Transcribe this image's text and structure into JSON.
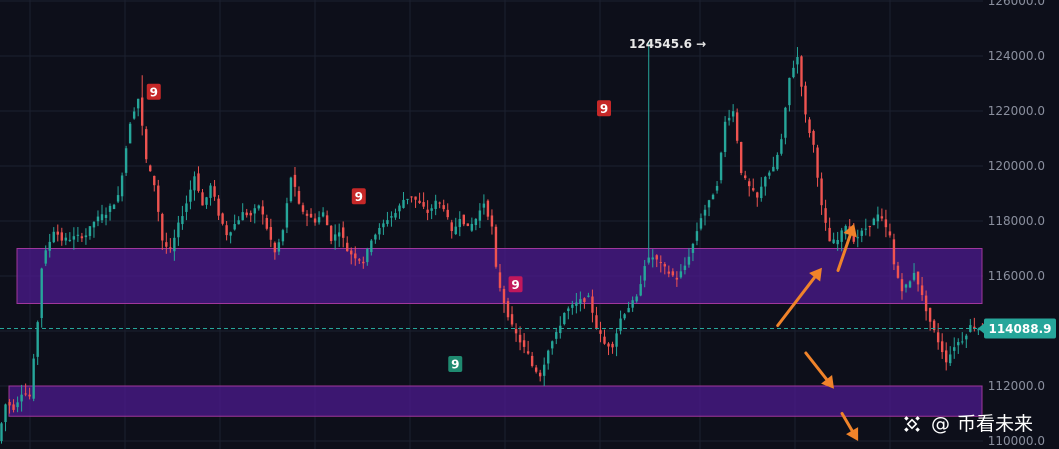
{
  "chart_data": {
    "type": "candlestick",
    "ylim": [
      110000,
      126000
    ],
    "y_ticks": [
      110000,
      112000,
      114000,
      116000,
      118000,
      120000,
      122000,
      124000,
      126000
    ],
    "y_tick_labels": [
      "110000.0",
      "112000.0",
      "114000.0",
      "116000.0",
      "118000.0",
      "120000.0",
      "122000.0",
      "124000.0",
      "126000.0"
    ],
    "grid": true,
    "up_color": "#26a69a",
    "down_color": "#ef5350",
    "price_path": [
      [
        0,
        110000
      ],
      [
        2,
        111400
      ],
      [
        4,
        111200
      ],
      [
        6,
        111800
      ],
      [
        8,
        111600
      ],
      [
        10,
        114500
      ],
      [
        11,
        116500
      ],
      [
        14,
        117700
      ],
      [
        16,
        117300
      ],
      [
        22,
        117500
      ],
      [
        24,
        118000
      ],
      [
        27,
        118300
      ],
      [
        30,
        118900
      ],
      [
        33,
        121700
      ],
      [
        35,
        122500
      ],
      [
        37,
        120100
      ],
      [
        39,
        119300
      ],
      [
        41,
        117200
      ],
      [
        43,
        116900
      ],
      [
        45,
        117900
      ],
      [
        47,
        118700
      ],
      [
        49,
        119700
      ],
      [
        51,
        118500
      ],
      [
        53,
        119300
      ],
      [
        55,
        118200
      ],
      [
        57,
        117500
      ],
      [
        59,
        117900
      ],
      [
        61,
        118300
      ],
      [
        63,
        118200
      ],
      [
        65,
        118600
      ],
      [
        67,
        117700
      ],
      [
        69,
        116800
      ],
      [
        71,
        117700
      ],
      [
        73,
        119700
      ],
      [
        75,
        118500
      ],
      [
        77,
        118200
      ],
      [
        79,
        118000
      ],
      [
        81,
        118300
      ],
      [
        83,
        117300
      ],
      [
        85,
        117700
      ],
      [
        87,
        116900
      ],
      [
        89,
        116700
      ],
      [
        91,
        116500
      ],
      [
        93,
        117400
      ],
      [
        95,
        117700
      ],
      [
        97,
        118100
      ],
      [
        99,
        118300
      ],
      [
        101,
        118800
      ],
      [
        103,
        118900
      ],
      [
        105,
        118600
      ],
      [
        107,
        118300
      ],
      [
        109,
        118700
      ],
      [
        111,
        118500
      ],
      [
        113,
        117500
      ],
      [
        115,
        118200
      ],
      [
        117,
        117700
      ],
      [
        119,
        118100
      ],
      [
        121,
        118700
      ],
      [
        123,
        117700
      ],
      [
        124,
        116100
      ],
      [
        126,
        115000
      ],
      [
        128,
        114100
      ],
      [
        130,
        113600
      ],
      [
        132,
        113100
      ],
      [
        133,
        112700
      ],
      [
        135,
        112400
      ],
      [
        137,
        113400
      ],
      [
        139,
        113900
      ],
      [
        141,
        114700
      ],
      [
        143,
        114900
      ],
      [
        145,
        115100
      ],
      [
        147,
        115200
      ],
      [
        149,
        114100
      ],
      [
        151,
        113500
      ],
      [
        153,
        113500
      ],
      [
        155,
        114500
      ],
      [
        157,
        114900
      ],
      [
        159,
        115200
      ],
      [
        161,
        116500
      ],
      [
        163,
        116700
      ],
      [
        165,
        116400
      ],
      [
        167,
        116100
      ],
      [
        169,
        115900
      ],
      [
        171,
        116400
      ],
      [
        173,
        117200
      ],
      [
        175,
        118200
      ],
      [
        177,
        118700
      ],
      [
        179,
        119400
      ],
      [
        181,
        121700
      ],
      [
        183,
        122000
      ],
      [
        185,
        119700
      ],
      [
        187,
        119200
      ],
      [
        189,
        118800
      ],
      [
        191,
        119700
      ],
      [
        193,
        119900
      ],
      [
        195,
        121000
      ],
      [
        197,
        123300
      ],
      [
        199,
        124000
      ],
      [
        201,
        121700
      ],
      [
        203,
        120700
      ],
      [
        205,
        118400
      ],
      [
        207,
        117200
      ],
      [
        209,
        117300
      ],
      [
        211,
        117900
      ],
      [
        213,
        117300
      ],
      [
        215,
        117600
      ],
      [
        217,
        117900
      ],
      [
        219,
        118200
      ],
      [
        220,
        118000
      ],
      [
        222,
        117400
      ],
      [
        223,
        116300
      ],
      [
        225,
        115500
      ],
      [
        227,
        115800
      ],
      [
        228,
        116200
      ],
      [
        230,
        115200
      ],
      [
        232,
        114300
      ],
      [
        234,
        113600
      ],
      [
        236,
        112900
      ],
      [
        238,
        113500
      ],
      [
        240,
        113700
      ],
      [
        242,
        114200
      ],
      [
        244,
        114088.9
      ]
    ],
    "annotations": [
      {
        "text": "9",
        "x": 38,
        "y": 122700,
        "kind": "sell-setup"
      },
      {
        "text": "9",
        "x": 89,
        "y": 118900,
        "kind": "sell-setup"
      },
      {
        "text": "9",
        "x": 128,
        "y": 115700,
        "kind": "sell-setup"
      },
      {
        "text": "9",
        "x": 113,
        "y": 112800,
        "kind": "buy-setup"
      },
      {
        "text": "9",
        "x": 150,
        "y": 122100,
        "kind": "sell-setup"
      }
    ],
    "high_label": {
      "text": "124545.6 →",
      "x": 161,
      "value": 124545.6
    },
    "current_price": {
      "value": 114088.9,
      "label": "114088.9"
    },
    "zones": [
      {
        "name": "resistance-zone",
        "y_low": 115000,
        "y_high": 117000,
        "color": "#4a1a8a"
      },
      {
        "name": "support-zone",
        "y_low": 110900,
        "y_high": 112000,
        "color": "#4a1a8a"
      }
    ],
    "projection_arrows": [
      {
        "from": [
          186,
          114200
        ],
        "to": [
          197,
          116300
        ],
        "color": "#f0832a"
      },
      {
        "from": [
          201,
          116200
        ],
        "to": [
          205,
          117900
        ],
        "color": "#f0832a"
      },
      {
        "from": [
          193,
          113200
        ],
        "to": [
          200,
          111900
        ],
        "color": "#f0832a"
      },
      {
        "from": [
          202,
          111000
        ],
        "to": [
          206,
          110000
        ],
        "color": "#f0832a"
      }
    ]
  },
  "watermark": {
    "prefix": "@",
    "name": "币看未来"
  },
  "colors": {
    "background": "#0d0f1a",
    "grid": "#1c2030",
    "label_bg_sell": "#c62828",
    "label_bg_sell_pink": "#c2185b",
    "label_bg_buy": "#1f8a70",
    "price_tag": "#26a69a",
    "zone_border": "#a0379c"
  }
}
